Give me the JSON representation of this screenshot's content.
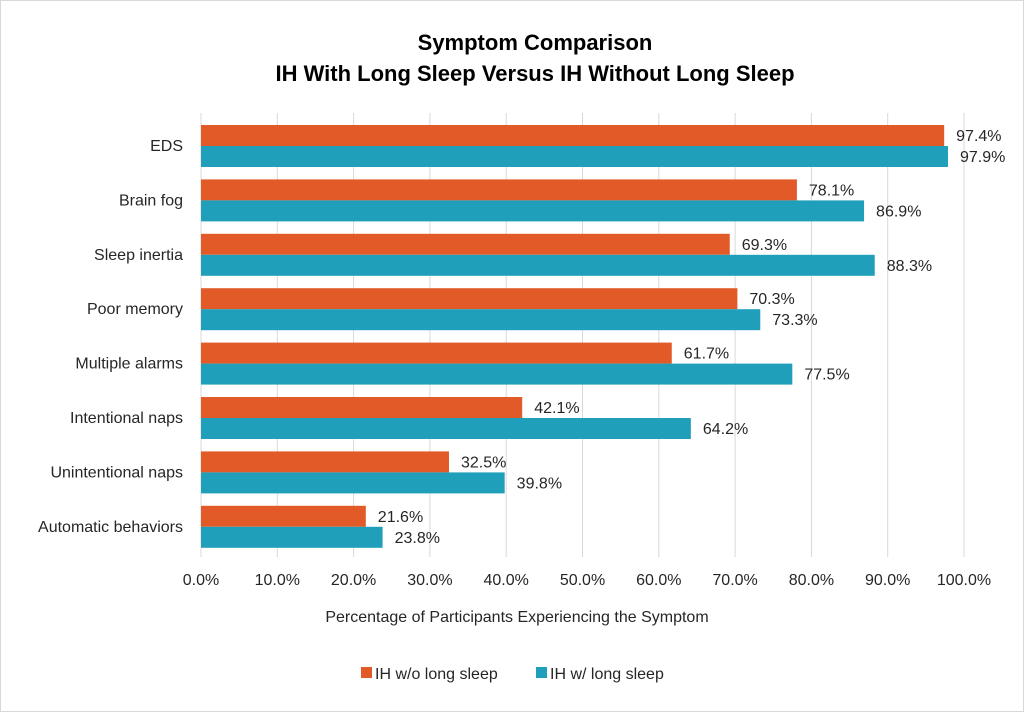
{
  "chart_data": {
    "type": "bar",
    "orientation": "horizontal",
    "title": [
      "Symptom Comparison",
      "IH With Long Sleep Versus IH Without Long Sleep"
    ],
    "xlabel": "Percentage of Participants Experiencing the Symptom",
    "ylabel": "",
    "categories": [
      "EDS",
      "Brain fog",
      "Sleep inertia",
      "Poor memory",
      "Multiple alarms",
      "Intentional naps",
      "Unintentional naps",
      "Automatic behaviors"
    ],
    "series": [
      {
        "name": "IH w/o long sleep",
        "color": "#e15a28",
        "values": [
          97.4,
          78.1,
          69.3,
          70.3,
          61.7,
          42.1,
          32.5,
          21.6
        ],
        "labels": [
          "97.4%",
          "78.1%",
          "69.3%",
          "70.3%",
          "61.7%",
          "42.1%",
          "32.5%",
          "21.6%"
        ]
      },
      {
        "name": "IH w/ long sleep",
        "color": "#1f9fba",
        "values": [
          97.9,
          86.9,
          88.3,
          73.3,
          77.5,
          64.2,
          39.8,
          23.8
        ],
        "labels": [
          "97.9%",
          "86.9%",
          "88.3%",
          "73.3%",
          "77.5%",
          "64.2%",
          "39.8%",
          "23.8%"
        ]
      }
    ],
    "xlim": [
      0,
      100
    ],
    "ticks": [
      0,
      10,
      20,
      30,
      40,
      50,
      60,
      70,
      80,
      90,
      100
    ],
    "tick_labels": [
      "0.0%",
      "10.0%",
      "20.0%",
      "30.0%",
      "40.0%",
      "50.0%",
      "60.0%",
      "70.0%",
      "80.0%",
      "90.0%",
      "100.0%"
    ],
    "grid": true,
    "legend_position": "bottom"
  }
}
